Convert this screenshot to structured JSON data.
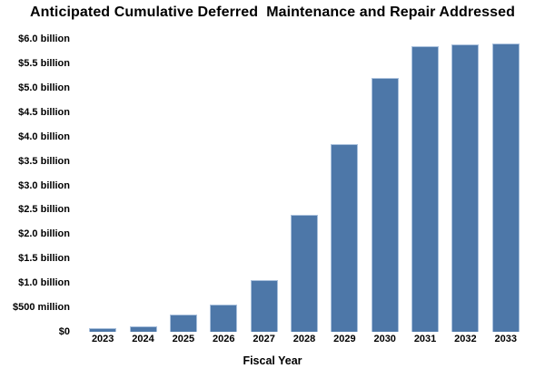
{
  "chart_data": {
    "type": "bar",
    "title": "Anticipated Cumulative Deferred  Maintenance and Repair Addressed",
    "xlabel": "Fiscal Year",
    "ylabel": "",
    "categories": [
      "2023",
      "2024",
      "2025",
      "2026",
      "2027",
      "2028",
      "2029",
      "2030",
      "2031",
      "2032",
      "2033"
    ],
    "values": [
      0.08,
      0.11,
      0.35,
      0.55,
      1.05,
      2.4,
      3.85,
      5.2,
      5.85,
      5.88,
      5.9
    ],
    "unit": "billions of dollars",
    "ylim": [
      0,
      6
    ],
    "yticks": [
      {
        "value": 0,
        "label": "$0"
      },
      {
        "value": 0.5,
        "label": "$500 million"
      },
      {
        "value": 1.0,
        "label": "$1.0 billion"
      },
      {
        "value": 1.5,
        "label": "$1.5 billion"
      },
      {
        "value": 2.0,
        "label": "$2.0 billion"
      },
      {
        "value": 2.5,
        "label": "$2.5 billion"
      },
      {
        "value": 3.0,
        "label": "$3.0 billion"
      },
      {
        "value": 3.5,
        "label": "$3.5 billion"
      },
      {
        "value": 4.0,
        "label": "$4.0 billion"
      },
      {
        "value": 4.5,
        "label": "$4.5 billion"
      },
      {
        "value": 5.0,
        "label": "$5.0 billion"
      },
      {
        "value": 5.5,
        "label": "$5.5 billion"
      },
      {
        "value": 6.0,
        "label": "$6.0 billion"
      }
    ],
    "grid": false,
    "legend_position": "none",
    "axis_lines": false,
    "bar_color": "#4d77a8",
    "bar_border_color": "#a9c0dc",
    "text_color": "#000000",
    "background_color": "#ffffff"
  }
}
